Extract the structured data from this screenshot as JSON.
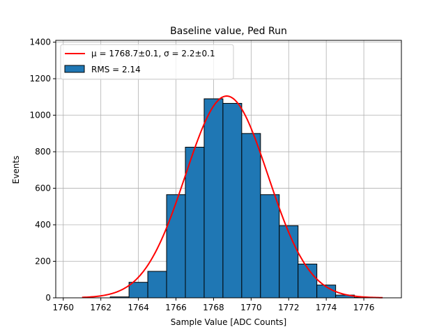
{
  "chart_data": {
    "type": "bar",
    "title": "Baseline value, Ped Run",
    "xlabel": "Sample Value [ADC Counts]",
    "ylabel": "Events",
    "xlim": [
      1759.6,
      1778.0
    ],
    "ylim": [
      0,
      1410
    ],
    "xticks": [
      1760,
      1762,
      1764,
      1766,
      1768,
      1770,
      1772,
      1774,
      1776
    ],
    "yticks": [
      0,
      200,
      400,
      600,
      800,
      1000,
      1200,
      1400
    ],
    "grid": true,
    "legend_position": "top-left",
    "bin_width": 1.0,
    "bins": [
      {
        "left": 1762.5,
        "value": 5
      },
      {
        "left": 1763.5,
        "value": 85
      },
      {
        "left": 1764.5,
        "value": 145
      },
      {
        "left": 1765.5,
        "value": 565
      },
      {
        "left": 1766.5,
        "value": 825
      },
      {
        "left": 1767.5,
        "value": 1090
      },
      {
        "left": 1768.5,
        "value": 1065
      },
      {
        "left": 1769.5,
        "value": 900
      },
      {
        "left": 1770.5,
        "value": 565
      },
      {
        "left": 1771.5,
        "value": 395
      },
      {
        "left": 1772.5,
        "value": 185
      },
      {
        "left": 1773.5,
        "value": 70
      },
      {
        "left": 1774.5,
        "value": 15
      },
      {
        "left": 1775.5,
        "value": 2
      }
    ],
    "series": [
      {
        "name": "μ = 1768.7±0.1, σ = 2.2±0.1",
        "type": "line",
        "color": "#ff0000",
        "fit": {
          "mu": 1768.7,
          "sigma": 2.2,
          "amplitude": 1105,
          "x_from": 1761.0,
          "x_to": 1777.0
        }
      },
      {
        "name": "RMS = 2.14",
        "type": "bar",
        "color": "#1f77b4"
      }
    ]
  }
}
